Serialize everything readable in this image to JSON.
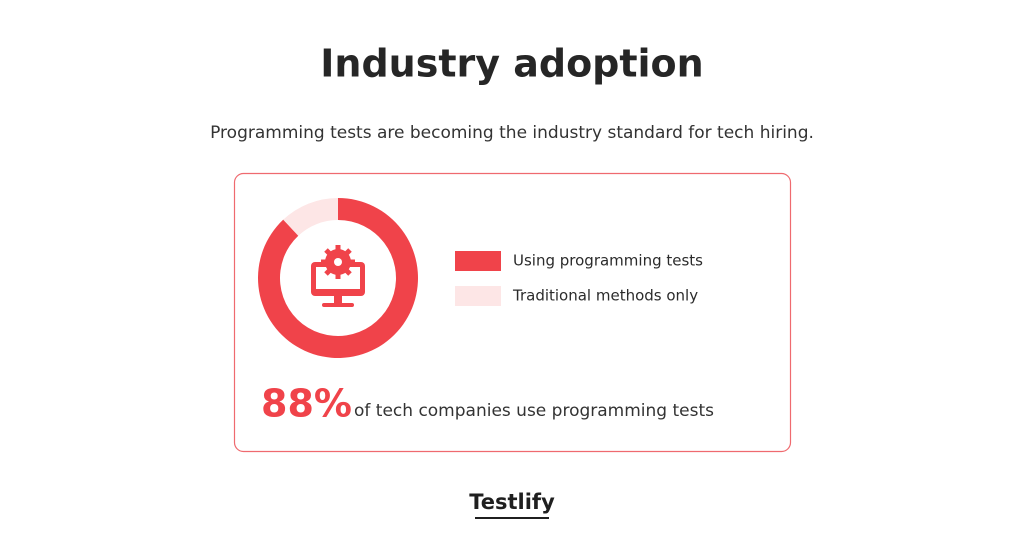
{
  "chart_data": {
    "type": "donut",
    "title": "Industry adoption",
    "subtitle": "Programming tests are becoming the industry standard for tech hiring.",
    "categories": [
      "Using programming tests",
      "Traditional methods only"
    ],
    "values": [
      88,
      12
    ],
    "value_labels": [
      "88%",
      null
    ],
    "colors": [
      "#f0434a",
      "#fde6e6"
    ],
    "annotation": "of tech companies use programming tests"
  },
  "footer": {
    "logo": "Testlify"
  }
}
